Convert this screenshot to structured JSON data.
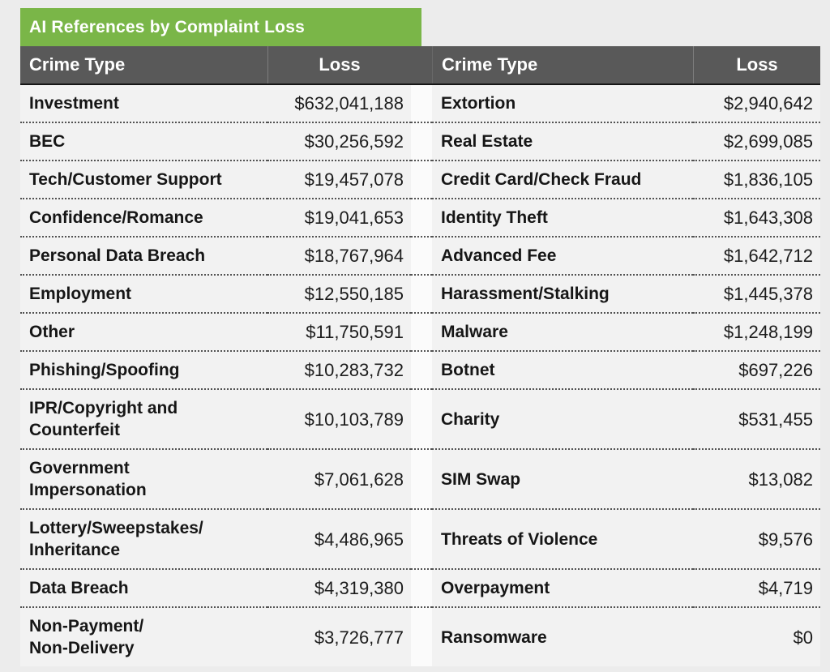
{
  "title": "AI References by Complaint Loss",
  "headers": {
    "crime": "Crime Type",
    "loss": "Loss"
  },
  "colors": {
    "title_bg": "#7ab648",
    "header_bg": "#595959",
    "row_bg": "#f2f2f2",
    "page_bg": "#ececec",
    "header_text": "#ffffff",
    "body_text": "#161616"
  },
  "rows": [
    {
      "left_crime": "Investment",
      "left_loss": "$632,041,188",
      "right_crime": "Extortion",
      "right_loss": "$2,940,642"
    },
    {
      "left_crime": "BEC",
      "left_loss": "$30,256,592",
      "right_crime": "Real Estate",
      "right_loss": "$2,699,085"
    },
    {
      "left_crime": "Tech/Customer Support",
      "left_loss": "$19,457,078",
      "right_crime": "Credit Card/Check Fraud",
      "right_loss": "$1,836,105"
    },
    {
      "left_crime": "Confidence/Romance",
      "left_loss": "$19,041,653",
      "right_crime": "Identity Theft",
      "right_loss": "$1,643,308"
    },
    {
      "left_crime": "Personal Data Breach",
      "left_loss": "$18,767,964",
      "right_crime": "Advanced Fee",
      "right_loss": "$1,642,712"
    },
    {
      "left_crime": "Employment",
      "left_loss": "$12,550,185",
      "right_crime": "Harassment/Stalking",
      "right_loss": "$1,445,378"
    },
    {
      "left_crime": "Other",
      "left_loss": "$11,750,591",
      "right_crime": "Malware",
      "right_loss": "$1,248,199"
    },
    {
      "left_crime": "Phishing/Spoofing",
      "left_loss": "$10,283,732",
      "right_crime": "Botnet",
      "right_loss": "$697,226"
    },
    {
      "left_crime": "IPR/Copyright and\nCounterfeit",
      "left_loss": "$10,103,789",
      "right_crime": "Charity",
      "right_loss": "$531,455"
    },
    {
      "left_crime": "Government\nImpersonation",
      "left_loss": "$7,061,628",
      "right_crime": "SIM Swap",
      "right_loss": "$13,082"
    },
    {
      "left_crime": "Lottery/Sweepstakes/\nInheritance",
      "left_loss": "$4,486,965",
      "right_crime": "Threats of Violence",
      "right_loss": "$9,576"
    },
    {
      "left_crime": "Data Breach",
      "left_loss": "$4,319,380",
      "right_crime": "Overpayment",
      "right_loss": "$4,719"
    },
    {
      "left_crime": "Non-Payment/\nNon-Delivery",
      "left_loss": "$3,726,777",
      "right_crime": "Ransomware",
      "right_loss": "$0"
    }
  ],
  "chart_data": {
    "type": "table",
    "title": "AI References by Complaint Loss",
    "columns": [
      "Crime Type",
      "Loss"
    ],
    "rows": [
      [
        "Investment",
        "$632,041,188"
      ],
      [
        "BEC",
        "$30,256,592"
      ],
      [
        "Tech/Customer Support",
        "$19,457,078"
      ],
      [
        "Confidence/Romance",
        "$19,041,653"
      ],
      [
        "Personal Data Breach",
        "$18,767,964"
      ],
      [
        "Employment",
        "$12,550,185"
      ],
      [
        "Other",
        "$11,750,591"
      ],
      [
        "Phishing/Spoofing",
        "$10,283,732"
      ],
      [
        "IPR/Copyright and Counterfeit",
        "$10,103,789"
      ],
      [
        "Government Impersonation",
        "$7,061,628"
      ],
      [
        "Lottery/Sweepstakes/Inheritance",
        "$4,486,965"
      ],
      [
        "Data Breach",
        "$4,319,380"
      ],
      [
        "Non-Payment/Non-Delivery",
        "$3,726,777"
      ],
      [
        "Extortion",
        "$2,940,642"
      ],
      [
        "Real Estate",
        "$2,699,085"
      ],
      [
        "Credit Card/Check Fraud",
        "$1,836,105"
      ],
      [
        "Identity Theft",
        "$1,643,308"
      ],
      [
        "Advanced Fee",
        "$1,642,712"
      ],
      [
        "Harassment/Stalking",
        "$1,445,378"
      ],
      [
        "Malware",
        "$1,248,199"
      ],
      [
        "Botnet",
        "$697,226"
      ],
      [
        "Charity",
        "$531,455"
      ],
      [
        "SIM Swap",
        "$13,082"
      ],
      [
        "Threats of Violence",
        "$9,576"
      ],
      [
        "Overpayment",
        "$4,719"
      ],
      [
        "Ransomware",
        "$0"
      ]
    ]
  }
}
